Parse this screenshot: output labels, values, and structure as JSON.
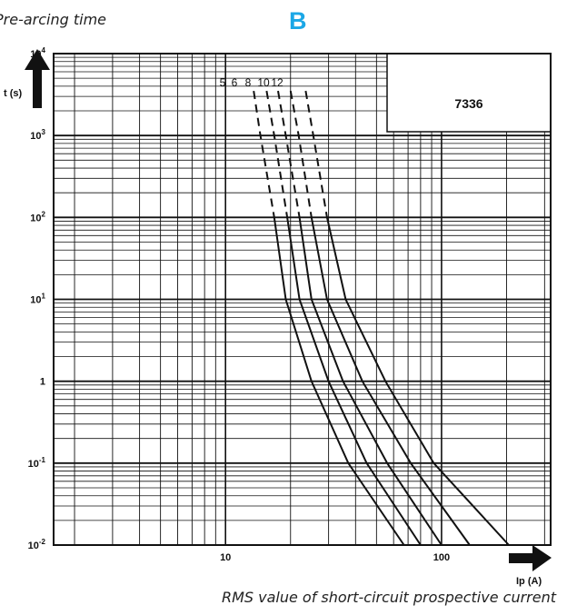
{
  "captions": {
    "top": "Pre-arcing time",
    "panel": "B",
    "bottom": "RMS value of short-circuit prospective current"
  },
  "chart_data": {
    "type": "line",
    "title": "7336",
    "ylabel": "t (s)",
    "xlabel": "Ip (A)",
    "xscale": "log",
    "yscale": "log",
    "xlim": [
      1.6,
      320
    ],
    "ylim": [
      0.01,
      10000
    ],
    "grid": true,
    "x_tick_labels": [
      {
        "value": 10,
        "label": "10"
      },
      {
        "value": 100,
        "label": "100"
      }
    ],
    "y_tick_labels": [
      {
        "value": 10000,
        "base": "10",
        "exp": "4"
      },
      {
        "value": 1000,
        "base": "10",
        "exp": "3"
      },
      {
        "value": 100,
        "base": "10",
        "exp": "2"
      },
      {
        "value": 10,
        "base": "10",
        "exp": "1"
      },
      {
        "value": 1,
        "base": "1",
        "exp": ""
      },
      {
        "value": 0.1,
        "base": "10",
        "exp": "-1"
      },
      {
        "value": 0.01,
        "base": "10",
        "exp": "-2"
      }
    ],
    "curve_labels": [
      "5",
      "6",
      "8",
      "10",
      "12"
    ],
    "series": [
      {
        "name": "5",
        "dashed_above": 100,
        "points": [
          [
            13.5,
            3500
          ],
          [
            14.5,
            1000
          ],
          [
            16.8,
            100
          ],
          [
            19,
            10
          ],
          [
            25,
            1
          ],
          [
            37,
            0.1
          ],
          [
            67,
            0.01
          ]
        ]
      },
      {
        "name": "6",
        "dashed_above": 100,
        "points": [
          [
            15.5,
            3500
          ],
          [
            16.8,
            1000
          ],
          [
            19.3,
            100
          ],
          [
            22,
            10
          ],
          [
            30,
            1
          ],
          [
            45,
            0.1
          ],
          [
            80,
            0.01
          ]
        ]
      },
      {
        "name": "8",
        "dashed_above": 100,
        "points": [
          [
            17.5,
            3500
          ],
          [
            19,
            1000
          ],
          [
            22,
            100
          ],
          [
            25,
            10
          ],
          [
            35,
            1
          ],
          [
            56,
            0.1
          ],
          [
            100,
            0.01
          ]
        ]
      },
      {
        "name": "10",
        "dashed_above": 100,
        "points": [
          [
            20,
            3500
          ],
          [
            21.8,
            1000
          ],
          [
            25,
            100
          ],
          [
            29.5,
            10
          ],
          [
            43,
            1
          ],
          [
            72,
            0.1
          ],
          [
            135,
            0.01
          ]
        ]
      },
      {
        "name": "12",
        "dashed_above": 100,
        "points": [
          [
            23.5,
            3500
          ],
          [
            25.5,
            1000
          ],
          [
            29.5,
            100
          ],
          [
            36,
            10
          ],
          [
            55,
            1
          ],
          [
            92,
            0.1
          ],
          [
            205,
            0.01
          ]
        ]
      }
    ]
  },
  "colors": {
    "accent": "#1ba7e6",
    "ink": "#111111"
  },
  "icons": {
    "y_arrow": "up-arrow-icon",
    "x_arrow": "right-arrow-icon"
  }
}
